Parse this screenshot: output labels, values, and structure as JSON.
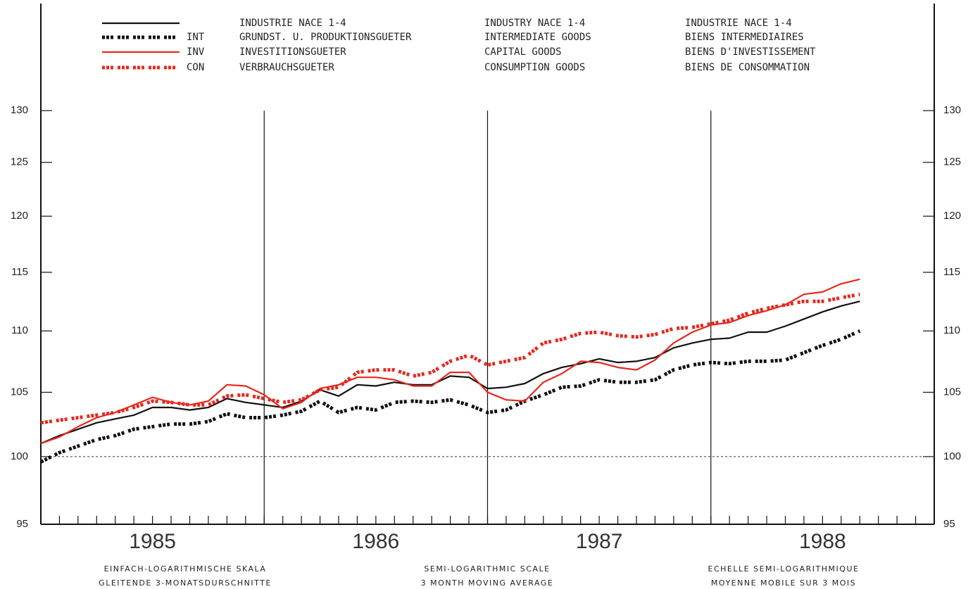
{
  "chart_data": {
    "type": "line",
    "log_scale": true,
    "x": [
      1985,
      1985.083,
      1985.167,
      1985.25,
      1985.333,
      1985.417,
      1985.5,
      1985.583,
      1985.667,
      1985.75,
      1985.833,
      1985.917,
      1986,
      1986.083,
      1986.167,
      1986.25,
      1986.333,
      1986.417,
      1986.5,
      1986.583,
      1986.667,
      1986.75,
      1986.833,
      1986.917,
      1987,
      1987.083,
      1987.167,
      1987.25,
      1987.333,
      1987.417,
      1987.5,
      1987.583,
      1987.667,
      1987.75,
      1987.833,
      1987.917,
      1988,
      1988.083,
      1988.167,
      1988.25,
      1988.333,
      1988.417,
      1988.5,
      1988.583,
      1988.667
    ],
    "xlim": [
      1985,
      1989
    ],
    "xticks": [
      {
        "value": 1985.5,
        "label": "1985"
      },
      {
        "value": 1986.5,
        "label": "1986"
      },
      {
        "value": 1987.5,
        "label": "1987"
      },
      {
        "value": 1988.5,
        "label": "1988"
      }
    ],
    "ylim": [
      95,
      141
    ],
    "yticks": [
      95,
      100,
      105,
      110,
      115,
      120,
      125,
      130
    ],
    "reference_line": 100,
    "series": [
      {
        "name": "INDUSTRIE NACE 1-4",
        "label_en": "INDUSTRY NACE 1-4",
        "label_fr": "INDUSTRIE NACE 1-4",
        "color": "#111111",
        "style": "solid",
        "values": [
          101.0,
          101.6,
          102.1,
          102.6,
          102.9,
          103.2,
          103.8,
          103.8,
          103.6,
          103.8,
          104.5,
          104.2,
          104.0,
          103.8,
          104.3,
          105.2,
          104.7,
          105.6,
          105.5,
          105.8,
          105.6,
          105.6,
          106.3,
          106.2,
          105.3,
          105.4,
          105.7,
          106.5,
          107.0,
          107.3,
          107.7,
          107.4,
          107.5,
          107.8,
          108.6,
          109.0,
          109.3,
          109.4,
          109.9,
          109.9,
          110.4,
          111.0,
          111.6,
          112.1,
          112.5
        ]
      },
      {
        "code": "INT",
        "name": "GRUNDST. U. PRODUKTIONSGUETER",
        "label_en": "INTERMEDIATE GOODS",
        "label_fr": "BIENS INTERMEDIAIRES",
        "color": "#111111",
        "style": "dotted",
        "values": [
          99.6,
          100.3,
          100.8,
          101.3,
          101.6,
          102.1,
          102.3,
          102.5,
          102.5,
          102.7,
          103.3,
          103.0,
          103.0,
          103.2,
          103.5,
          104.3,
          103.4,
          103.8,
          103.6,
          104.2,
          104.3,
          104.2,
          104.4,
          104.0,
          103.4,
          103.6,
          104.3,
          104.8,
          105.4,
          105.5,
          106.0,
          105.8,
          105.8,
          106.0,
          106.8,
          107.2,
          107.4,
          107.3,
          107.5,
          107.5,
          107.6,
          108.2,
          108.8,
          109.3,
          110.0
        ]
      },
      {
        "code": "INV",
        "name": "INVESTITIONSGUETER",
        "label_en": "CAPITAL GOODS",
        "label_fr": "BIENS D'INVESTISSEMENT",
        "color": "#e8281e",
        "style": "solid",
        "values": [
          101.0,
          101.5,
          102.3,
          103.0,
          103.4,
          104.0,
          104.6,
          104.2,
          104.0,
          104.3,
          105.6,
          105.5,
          104.8,
          103.7,
          104.2,
          105.3,
          105.6,
          106.2,
          106.2,
          106.0,
          105.5,
          105.5,
          106.6,
          106.6,
          105.0,
          104.4,
          104.3,
          105.8,
          106.5,
          107.5,
          107.4,
          107.0,
          106.8,
          107.6,
          109.0,
          109.9,
          110.5,
          110.7,
          111.3,
          111.7,
          112.2,
          113.1,
          113.3,
          114.0,
          114.4
        ]
      },
      {
        "code": "CON",
        "name": "VERBRAUCHSGUETER",
        "label_en": "CONSUMPTION GOODS",
        "label_fr": "BIENS DE CONSOMMATION",
        "color": "#e8281e",
        "style": "dotted",
        "values": [
          102.6,
          102.8,
          103.0,
          103.2,
          103.4,
          103.8,
          104.3,
          104.2,
          104.0,
          104.0,
          104.7,
          104.8,
          104.5,
          104.2,
          104.4,
          105.2,
          105.4,
          106.6,
          106.8,
          106.8,
          106.3,
          106.6,
          107.5,
          108.0,
          107.2,
          107.5,
          107.8,
          109.0,
          109.3,
          109.8,
          109.9,
          109.6,
          109.5,
          109.7,
          110.2,
          110.3,
          110.6,
          110.9,
          111.5,
          111.9,
          112.2,
          112.5,
          112.5,
          112.8,
          113.1
        ]
      }
    ],
    "footnotes": [
      [
        "EINFACH-LOGARITHMISCHE SKALA",
        "GLEITENDE 3-MONATSDURSCHNITTE"
      ],
      [
        "SEMI-LOGARITHMIC SCALE",
        "3 MONTH MOVING AVERAGE"
      ],
      [
        "ECHELLE SEMI-LOGARITHMIQUE",
        "MOYENNE MOBILE SUR 3 MOIS"
      ]
    ]
  }
}
